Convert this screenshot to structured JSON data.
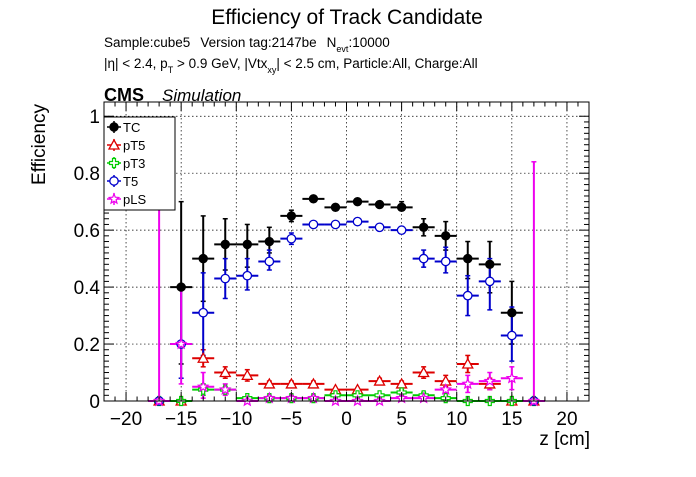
{
  "chart_data": {
    "type": "scatter",
    "title": "Efficiency of Track Candidate",
    "subtitle_line1": {
      "sample": "Sample:cube5",
      "version": "Version tag:2147be",
      "nevt_prefix": "N",
      "nevt_sub": "evt",
      "nevt_suffix": ":10000"
    },
    "subtitle_line2": {
      "eta": "|η| < 2.4, p",
      "pt_sub": "T",
      "pt_cut": " > 0.9 GeV, |Vtx",
      "vtx_sub": "xy",
      "rest": "| < 2.5 cm, Particle:All, Charge:All"
    },
    "cms_label": "CMS",
    "simulation_label": "Simulation",
    "xlabel": "z [cm]",
    "ylabel": "Efficiency",
    "xlim": [
      -22,
      22
    ],
    "ylim": [
      0,
      1.05
    ],
    "x_ticks": [
      -20,
      -15,
      -10,
      -5,
      0,
      5,
      10,
      15,
      20
    ],
    "x_tick_labels": [
      "−20",
      "−15",
      "−10",
      "−5",
      "0",
      "5",
      "10",
      "15",
      "20"
    ],
    "y_ticks": [
      0,
      0.2,
      0.4,
      0.6,
      0.8,
      1
    ],
    "y_tick_labels": [
      "0",
      "0.2",
      "0.4",
      "0.6",
      "0.8",
      "1"
    ],
    "grid": true,
    "legend_position": "top-left",
    "bin_half_width": 1,
    "series": [
      {
        "name": "TC",
        "color": "#000000",
        "marker": "filled-circle",
        "points": [
          {
            "x": -17,
            "y": 0.0,
            "ylo": 0.0,
            "yhi": 0.0
          },
          {
            "x": -15,
            "y": 0.4,
            "ylo": 0.13,
            "yhi": 0.7
          },
          {
            "x": -13,
            "y": 0.5,
            "ylo": 0.35,
            "yhi": 0.65
          },
          {
            "x": -11,
            "y": 0.55,
            "ylo": 0.46,
            "yhi": 0.64
          },
          {
            "x": -9,
            "y": 0.55,
            "ylo": 0.47,
            "yhi": 0.62
          },
          {
            "x": -7,
            "y": 0.56,
            "ylo": 0.52,
            "yhi": 0.61
          },
          {
            "x": -5,
            "y": 0.65,
            "ylo": 0.63,
            "yhi": 0.67
          },
          {
            "x": -3,
            "y": 0.71,
            "ylo": 0.7,
            "yhi": 0.72
          },
          {
            "x": -1,
            "y": 0.68,
            "ylo": 0.67,
            "yhi": 0.69
          },
          {
            "x": 1,
            "y": 0.7,
            "ylo": 0.69,
            "yhi": 0.71
          },
          {
            "x": 3,
            "y": 0.69,
            "ylo": 0.68,
            "yhi": 0.7
          },
          {
            "x": 5,
            "y": 0.68,
            "ylo": 0.67,
            "yhi": 0.7
          },
          {
            "x": 7,
            "y": 0.61,
            "ylo": 0.58,
            "yhi": 0.64
          },
          {
            "x": 9,
            "y": 0.58,
            "ylo": 0.53,
            "yhi": 0.63
          },
          {
            "x": 11,
            "y": 0.5,
            "ylo": 0.43,
            "yhi": 0.56
          },
          {
            "x": 13,
            "y": 0.48,
            "ylo": 0.38,
            "yhi": 0.56
          },
          {
            "x": 15,
            "y": 0.31,
            "ylo": 0.2,
            "yhi": 0.42
          },
          {
            "x": 17,
            "y": 0.0,
            "ylo": 0.0,
            "yhi": 0.0
          }
        ]
      },
      {
        "name": "pT5",
        "color": "#dd0000",
        "marker": "open-triangle",
        "points": [
          {
            "x": -17,
            "y": 0.0,
            "ylo": 0.0,
            "yhi": 0.0
          },
          {
            "x": -15,
            "y": 0.0,
            "ylo": 0.0,
            "yhi": 0.0
          },
          {
            "x": -13,
            "y": 0.15,
            "ylo": 0.12,
            "yhi": 0.18
          },
          {
            "x": -11,
            "y": 0.1,
            "ylo": 0.08,
            "yhi": 0.12
          },
          {
            "x": -9,
            "y": 0.09,
            "ylo": 0.07,
            "yhi": 0.11
          },
          {
            "x": -7,
            "y": 0.06,
            "ylo": 0.05,
            "yhi": 0.07
          },
          {
            "x": -5,
            "y": 0.06,
            "ylo": 0.05,
            "yhi": 0.07
          },
          {
            "x": -3,
            "y": 0.06,
            "ylo": 0.05,
            "yhi": 0.07
          },
          {
            "x": -1,
            "y": 0.04,
            "ylo": 0.035,
            "yhi": 0.045
          },
          {
            "x": 1,
            "y": 0.04,
            "ylo": 0.035,
            "yhi": 0.045
          },
          {
            "x": 3,
            "y": 0.07,
            "ylo": 0.06,
            "yhi": 0.08
          },
          {
            "x": 5,
            "y": 0.06,
            "ylo": 0.05,
            "yhi": 0.07
          },
          {
            "x": 7,
            "y": 0.1,
            "ylo": 0.08,
            "yhi": 0.12
          },
          {
            "x": 9,
            "y": 0.07,
            "ylo": 0.05,
            "yhi": 0.09
          },
          {
            "x": 11,
            "y": 0.13,
            "ylo": 0.1,
            "yhi": 0.16
          },
          {
            "x": 13,
            "y": 0.06,
            "ylo": 0.04,
            "yhi": 0.08
          },
          {
            "x": 15,
            "y": 0.0,
            "ylo": 0.0,
            "yhi": 0.0
          },
          {
            "x": 17,
            "y": 0.0,
            "ylo": 0.0,
            "yhi": 0.0
          }
        ]
      },
      {
        "name": "pT3",
        "color": "#00cc00",
        "marker": "open-cross",
        "points": [
          {
            "x": -17,
            "y": 0.0,
            "ylo": 0.0,
            "yhi": 0.0
          },
          {
            "x": -15,
            "y": 0.0,
            "ylo": 0.0,
            "yhi": 0.0
          },
          {
            "x": -13,
            "y": 0.04,
            "ylo": 0.02,
            "yhi": 0.06
          },
          {
            "x": -11,
            "y": 0.04,
            "ylo": 0.03,
            "yhi": 0.05
          },
          {
            "x": -9,
            "y": 0.01,
            "ylo": 0.005,
            "yhi": 0.015
          },
          {
            "x": -7,
            "y": 0.01,
            "ylo": 0.005,
            "yhi": 0.015
          },
          {
            "x": -5,
            "y": 0.01,
            "ylo": 0.005,
            "yhi": 0.015
          },
          {
            "x": -3,
            "y": 0.01,
            "ylo": 0.005,
            "yhi": 0.015
          },
          {
            "x": -1,
            "y": 0.02,
            "ylo": 0.015,
            "yhi": 0.025
          },
          {
            "x": 1,
            "y": 0.02,
            "ylo": 0.015,
            "yhi": 0.025
          },
          {
            "x": 3,
            "y": 0.02,
            "ylo": 0.015,
            "yhi": 0.025
          },
          {
            "x": 5,
            "y": 0.03,
            "ylo": 0.02,
            "yhi": 0.04
          },
          {
            "x": 7,
            "y": 0.02,
            "ylo": 0.01,
            "yhi": 0.03
          },
          {
            "x": 9,
            "y": 0.01,
            "ylo": 0.005,
            "yhi": 0.015
          },
          {
            "x": 11,
            "y": 0.0,
            "ylo": 0.0,
            "yhi": 0.0
          },
          {
            "x": 13,
            "y": 0.0,
            "ylo": 0.0,
            "yhi": 0.0
          },
          {
            "x": 15,
            "y": 0.0,
            "ylo": 0.0,
            "yhi": 0.0
          },
          {
            "x": 17,
            "y": 0.0,
            "ylo": 0.0,
            "yhi": 0.0
          }
        ]
      },
      {
        "name": "T5",
        "color": "#0000cc",
        "marker": "open-circle",
        "points": [
          {
            "x": -17,
            "y": 0.0,
            "ylo": 0.0,
            "yhi": 0.0
          },
          {
            "x": -15,
            "y": 0.2,
            "ylo": 0.08,
            "yhi": 0.4
          },
          {
            "x": -13,
            "y": 0.31,
            "ylo": 0.16,
            "yhi": 0.45
          },
          {
            "x": -11,
            "y": 0.43,
            "ylo": 0.36,
            "yhi": 0.5
          },
          {
            "x": -9,
            "y": 0.44,
            "ylo": 0.39,
            "yhi": 0.5
          },
          {
            "x": -7,
            "y": 0.49,
            "ylo": 0.46,
            "yhi": 0.53
          },
          {
            "x": -5,
            "y": 0.57,
            "ylo": 0.55,
            "yhi": 0.59
          },
          {
            "x": -3,
            "y": 0.62,
            "ylo": 0.61,
            "yhi": 0.63
          },
          {
            "x": -1,
            "y": 0.62,
            "ylo": 0.61,
            "yhi": 0.63
          },
          {
            "x": 1,
            "y": 0.63,
            "ylo": 0.62,
            "yhi": 0.64
          },
          {
            "x": 3,
            "y": 0.61,
            "ylo": 0.6,
            "yhi": 0.62
          },
          {
            "x": 5,
            "y": 0.6,
            "ylo": 0.59,
            "yhi": 0.61
          },
          {
            "x": 7,
            "y": 0.5,
            "ylo": 0.47,
            "yhi": 0.53
          },
          {
            "x": 9,
            "y": 0.49,
            "ylo": 0.45,
            "yhi": 0.54
          },
          {
            "x": 11,
            "y": 0.37,
            "ylo": 0.3,
            "yhi": 0.44
          },
          {
            "x": 13,
            "y": 0.42,
            "ylo": 0.32,
            "yhi": 0.5
          },
          {
            "x": 15,
            "y": 0.23,
            "ylo": 0.14,
            "yhi": 0.33
          },
          {
            "x": 17,
            "y": 0.0,
            "ylo": 0.0,
            "yhi": 0.0
          }
        ]
      },
      {
        "name": "pLS",
        "color": "#ee00ee",
        "marker": "open-star",
        "points": [
          {
            "x": -17,
            "y": 0.0,
            "ylo": 0.0,
            "yhi": 0.84
          },
          {
            "x": -15,
            "y": 0.2,
            "ylo": 0.06,
            "yhi": 0.4
          },
          {
            "x": -13,
            "y": 0.05,
            "ylo": 0.01,
            "yhi": 0.1
          },
          {
            "x": -11,
            "y": 0.04,
            "ylo": 0.02,
            "yhi": 0.06
          },
          {
            "x": -9,
            "y": 0.0,
            "ylo": 0.0,
            "yhi": 0.01
          },
          {
            "x": -7,
            "y": 0.01,
            "ylo": 0.0,
            "yhi": 0.02
          },
          {
            "x": -5,
            "y": 0.01,
            "ylo": 0.0,
            "yhi": 0.02
          },
          {
            "x": -3,
            "y": 0.01,
            "ylo": 0.0,
            "yhi": 0.02
          },
          {
            "x": -1,
            "y": 0.0,
            "ylo": 0.0,
            "yhi": 0.01
          },
          {
            "x": 1,
            "y": 0.0,
            "ylo": 0.0,
            "yhi": 0.01
          },
          {
            "x": 3,
            "y": 0.0,
            "ylo": 0.0,
            "yhi": 0.01
          },
          {
            "x": 5,
            "y": 0.01,
            "ylo": 0.0,
            "yhi": 0.02
          },
          {
            "x": 7,
            "y": 0.01,
            "ylo": 0.0,
            "yhi": 0.02
          },
          {
            "x": 9,
            "y": 0.04,
            "ylo": 0.02,
            "yhi": 0.06
          },
          {
            "x": 11,
            "y": 0.06,
            "ylo": 0.03,
            "yhi": 0.09
          },
          {
            "x": 13,
            "y": 0.07,
            "ylo": 0.04,
            "yhi": 0.1
          },
          {
            "x": 15,
            "y": 0.08,
            "ylo": 0.04,
            "yhi": 0.12
          },
          {
            "x": 17,
            "y": 0.0,
            "ylo": 0.0,
            "yhi": 0.84
          }
        ]
      }
    ]
  }
}
